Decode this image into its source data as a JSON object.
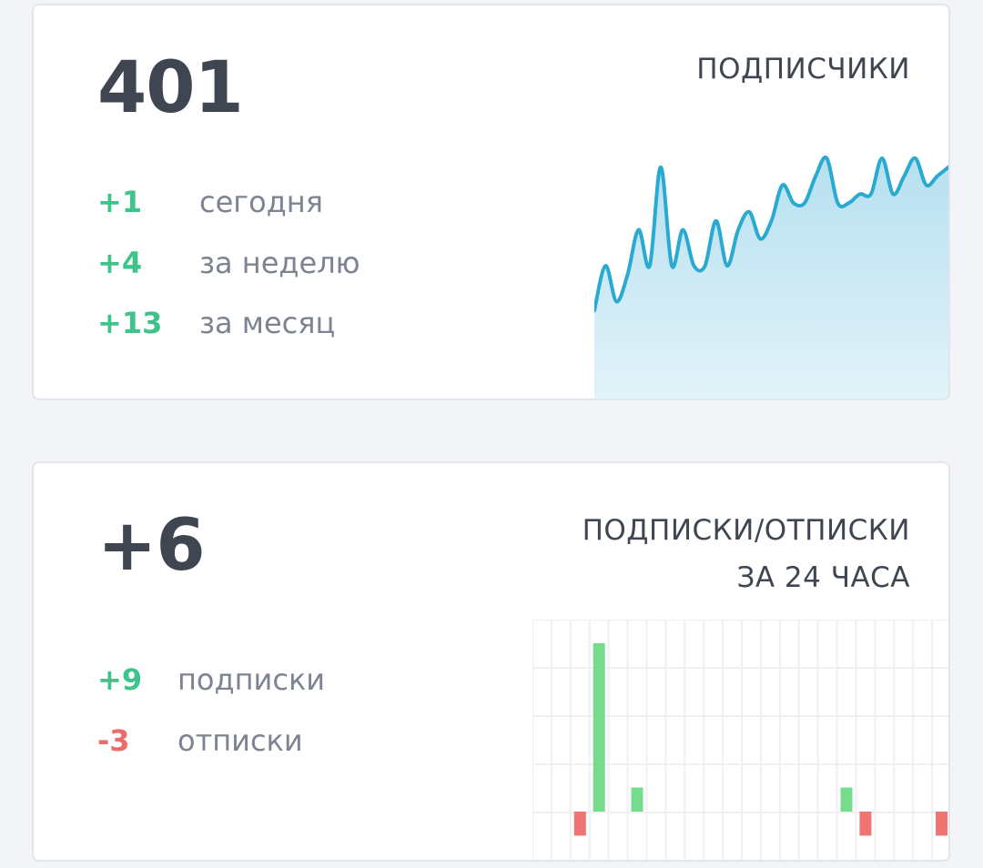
{
  "colors": {
    "positive": "#3ec48a",
    "negative": "#ec6b6b",
    "line": "#2aaad0",
    "area": "#bde4f0",
    "bar_positive": "#74dc8c",
    "bar_negative": "#ef7575"
  },
  "subscribers_card": {
    "title": "ПОДПИСЧИКИ",
    "total": "401",
    "stats": [
      {
        "value": "+1",
        "label": "сегодня"
      },
      {
        "value": "+4",
        "label": "за неделю"
      },
      {
        "value": "+13",
        "label": "за месяц"
      }
    ]
  },
  "changes_card": {
    "title_line1": "ПОДПИСКИ/ОТПИСКИ",
    "title_line2": "ЗА 24 ЧАСА",
    "net": "+6",
    "stats": [
      {
        "value": "+9",
        "label": "подписки",
        "kind": "positive"
      },
      {
        "value": "-3",
        "label": "отписки",
        "kind": "negative"
      }
    ]
  },
  "chart_data": [
    {
      "type": "area",
      "values": [
        388,
        393,
        389,
        392,
        397,
        393,
        404,
        393,
        397,
        393,
        393,
        398,
        393,
        397,
        399,
        396,
        398,
        402,
        400,
        400,
        403,
        405,
        400,
        400,
        401,
        401,
        405,
        401,
        403,
        405,
        402,
        403,
        404
      ],
      "ylim": [
        386,
        406
      ]
    },
    {
      "type": "bar",
      "positive": [
        0,
        0,
        0,
        7,
        0,
        1,
        0,
        0,
        0,
        0,
        0,
        0,
        0,
        0,
        0,
        0,
        1,
        0,
        0,
        0,
        0,
        0
      ],
      "negative": [
        0,
        0,
        -1,
        0,
        0,
        0,
        0,
        0,
        0,
        0,
        0,
        0,
        0,
        0,
        0,
        0,
        0,
        -1,
        0,
        0,
        0,
        -1
      ],
      "ylim": [
        -1,
        7
      ]
    }
  ]
}
